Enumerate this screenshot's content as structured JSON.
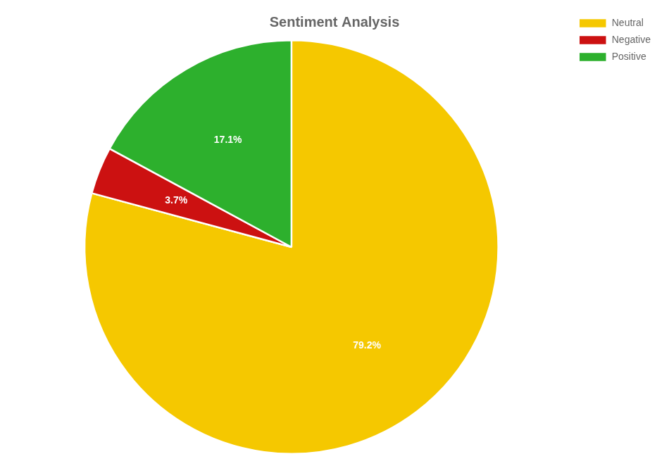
{
  "chart_data": {
    "type": "pie",
    "title": "Sentiment Analysis",
    "categories": [
      "Neutral",
      "Negative",
      "Positive"
    ],
    "values": [
      79.2,
      3.7,
      17.1
    ],
    "value_labels": [
      "79.2%",
      "3.7%",
      "17.1%"
    ],
    "colors": [
      "#f5c800",
      "#cc1111",
      "#2db02d"
    ],
    "data_labels": true,
    "legend": "upper right"
  }
}
